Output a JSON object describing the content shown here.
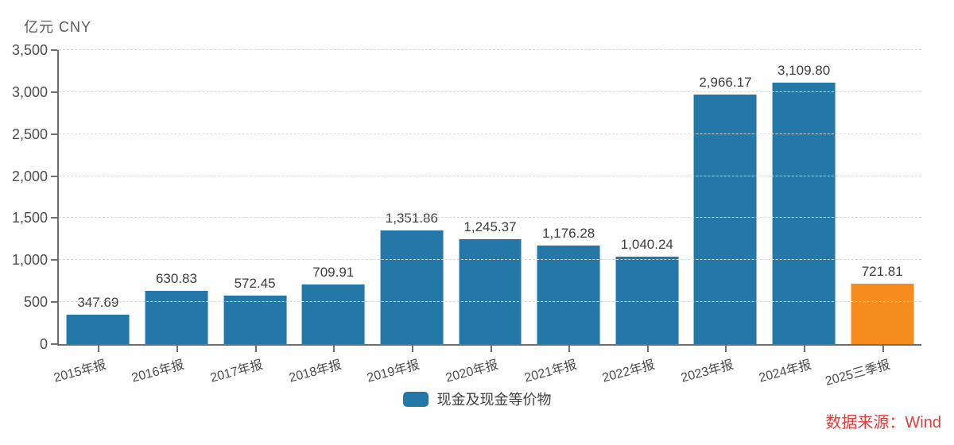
{
  "chart_data": {
    "type": "bar",
    "title": "",
    "unit_label": "亿元  CNY",
    "categories": [
      "2015年报",
      "2016年报",
      "2017年报",
      "2018年报",
      "2019年报",
      "2020年报",
      "2021年报",
      "2022年报",
      "2023年报",
      "2024年报",
      "2025三季报"
    ],
    "values": [
      347.69,
      630.83,
      572.45,
      709.91,
      1351.86,
      1245.37,
      1176.28,
      1040.24,
      2966.17,
      3109.8,
      721.81
    ],
    "value_labels": [
      "347.69",
      "630.83",
      "572.45",
      "709.91",
      "1,351.86",
      "1,245.37",
      "1,176.28",
      "1,040.24",
      "2,966.17",
      "3,109.80",
      "721.81"
    ],
    "ylim": [
      0,
      3500
    ],
    "y_tick_values": [
      0,
      500,
      1000,
      1500,
      2000,
      2500,
      3000,
      3500
    ],
    "y_tick_labels": [
      "0",
      "500",
      "1,000",
      "1,500",
      "2,000",
      "2,500",
      "3,000",
      "3,500"
    ],
    "grid": true,
    "legend_position": "bottom-center",
    "legend": [
      {
        "label": "现金及现金等价物",
        "color": "#2378a8"
      }
    ],
    "bar_default_color": "#2378a8",
    "bar_highlight_index": 10,
    "bar_highlight_color": "#f78c1e",
    "source": "数据来源：Wind"
  },
  "colors": {
    "axis": "#6e6e6e",
    "gridline": "#d9d9d9",
    "text": "#4d4d4d",
    "source_red": "#e23b3b",
    "background": "#ffffff"
  }
}
